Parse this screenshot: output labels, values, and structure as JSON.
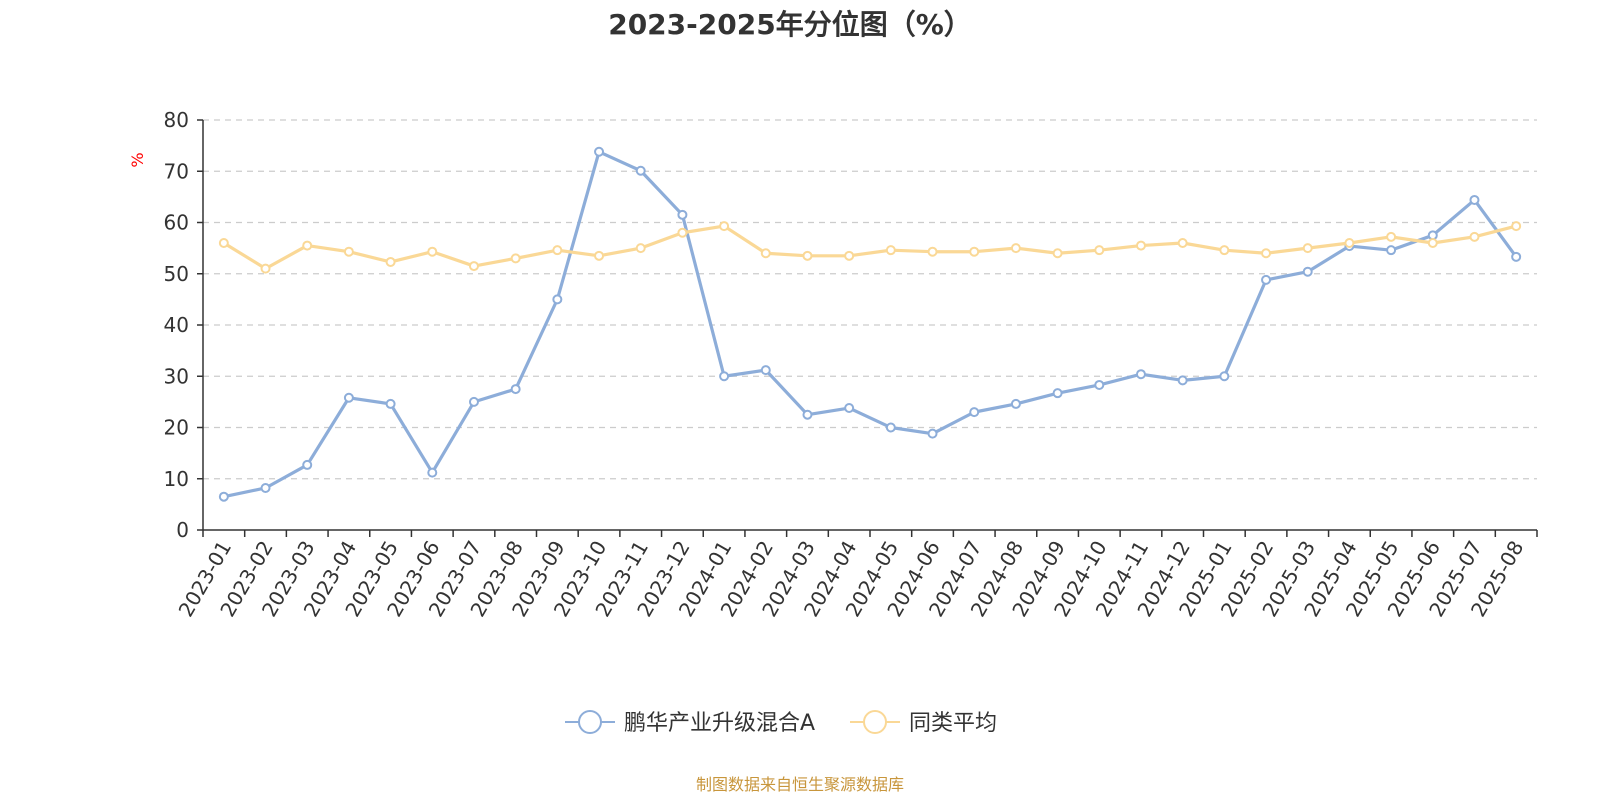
{
  "colors": {
    "series_a": "#8dadd9",
    "series_b": "#fad896",
    "source_text": "#c8963c",
    "unit_text": "#ff0000",
    "grid": "#cccccc",
    "axis": "#333333"
  },
  "source_text": "制图数据来自恒生聚源数据库",
  "chart_data": {
    "type": "line",
    "title": "2023-2025年分位图（%）",
    "ylabel": "%",
    "xlabel": "",
    "ylim": [
      0,
      80
    ],
    "yticks": [
      0,
      10,
      20,
      30,
      40,
      50,
      60,
      70,
      80
    ],
    "grid": true,
    "legend": "bottom-center",
    "categories": [
      "2023-01",
      "2023-02",
      "2023-03",
      "2023-04",
      "2023-05",
      "2023-06",
      "2023-07",
      "2023-08",
      "2023-09",
      "2023-10",
      "2023-11",
      "2023-12",
      "2024-01",
      "2024-02",
      "2024-03",
      "2024-04",
      "2024-05",
      "2024-06",
      "2024-07",
      "2024-08",
      "2024-09",
      "2024-10",
      "2024-11",
      "2024-12",
      "2025-01",
      "2025-02",
      "2025-03",
      "2025-04",
      "2025-05",
      "2025-06",
      "2025-07",
      "2025-08"
    ],
    "series": [
      {
        "name": "鹏华产业升级混合A",
        "color": "#8dadd9",
        "values": [
          6.5,
          8.2,
          12.7,
          25.8,
          24.6,
          11.2,
          25.0,
          27.5,
          45.0,
          73.8,
          70.1,
          61.5,
          30.0,
          31.2,
          22.5,
          23.8,
          20.0,
          18.8,
          23.0,
          24.6,
          26.7,
          28.3,
          30.4,
          29.2,
          30.0,
          48.8,
          50.4,
          55.4,
          54.6,
          57.5,
          64.4,
          53.3
        ]
      },
      {
        "name": "同类平均",
        "color": "#fad896",
        "values": [
          56.0,
          51.0,
          55.5,
          54.3,
          52.3,
          54.3,
          51.5,
          53.0,
          54.6,
          53.5,
          55.0,
          58.0,
          59.3,
          54.0,
          53.5,
          53.5,
          54.6,
          54.3,
          54.3,
          55.0,
          54.0,
          54.6,
          55.5,
          56.0,
          54.6,
          54.0,
          55.0,
          56.0,
          57.2,
          56.0,
          57.2,
          59.3
        ]
      }
    ]
  }
}
